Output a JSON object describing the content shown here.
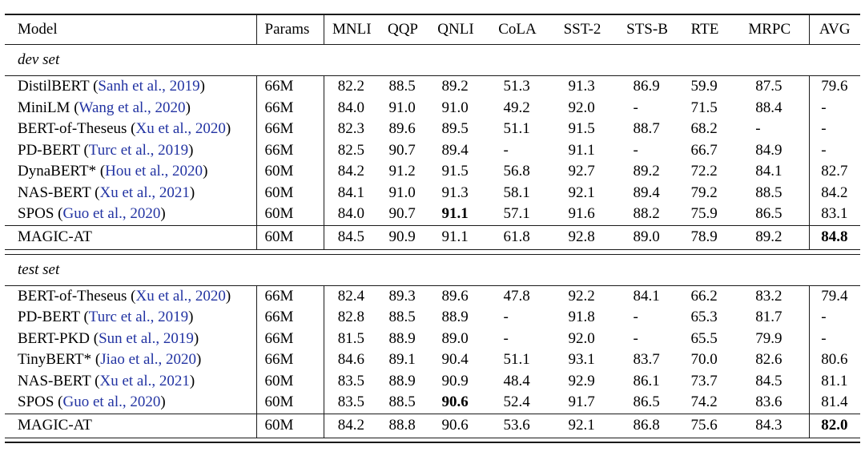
{
  "accent_colors": {
    "citation_blue": "#2233a2",
    "text": "#000000",
    "background": "#ffffff"
  },
  "table": {
    "columns": [
      "Model",
      "Params",
      "MNLI",
      "QQP",
      "QNLI",
      "CoLA",
      "SST-2",
      "STS-B",
      "RTE",
      "MRPC",
      "AVG"
    ],
    "sections": [
      {
        "label": "dev set",
        "rows": [
          {
            "model": "DistilBERT",
            "citation": "Sanh et al., 2019",
            "params": "66M",
            "values": [
              "82.2",
              "88.5",
              "89.2",
              "51.3",
              "91.3",
              "86.9",
              "59.9",
              "87.5",
              "79.6"
            ],
            "bold": []
          },
          {
            "model": "MiniLM",
            "citation": "Wang et al., 2020",
            "params": "66M",
            "values": [
              "84.0",
              "91.0",
              "91.0",
              "49.2",
              "92.0",
              "-",
              "71.5",
              "88.4",
              "-"
            ],
            "bold": []
          },
          {
            "model": "BERT-of-Theseus",
            "citation": "Xu et al., 2020",
            "params": "66M",
            "values": [
              "82.3",
              "89.6",
              "89.5",
              "51.1",
              "91.5",
              "88.7",
              "68.2",
              "-",
              "-"
            ],
            "bold": []
          },
          {
            "model": "PD-BERT",
            "citation": "Turc et al., 2019",
            "params": "66M",
            "values": [
              "82.5",
              "90.7",
              "89.4",
              "-",
              "91.1",
              "-",
              "66.7",
              "84.9",
              "-"
            ],
            "bold": []
          },
          {
            "model": "DynaBERT*",
            "citation": "Hou et al., 2020",
            "params": "60M",
            "values": [
              "84.2",
              "91.2",
              "91.5",
              "56.8",
              "92.7",
              "89.2",
              "72.2",
              "84.1",
              "82.7"
            ],
            "bold": []
          },
          {
            "model": "NAS-BERT",
            "citation": "Xu et al., 2021",
            "params": "60M",
            "values": [
              "84.1",
              "91.0",
              "91.3",
              "58.1",
              "92.1",
              "89.4",
              "79.2",
              "88.5",
              "84.2"
            ],
            "bold": []
          },
          {
            "model": "SPOS",
            "citation": "Guo et al., 2020",
            "params": "60M",
            "values": [
              "84.0",
              "90.7",
              "91.1",
              "57.1",
              "91.6",
              "88.2",
              "75.9",
              "86.5",
              "83.1"
            ],
            "bold": [
              2
            ]
          }
        ],
        "highlight_row": {
          "model": "MAGIC-AT",
          "citation": null,
          "params": "60M",
          "values": [
            "84.5",
            "90.9",
            "91.1",
            "61.8",
            "92.8",
            "89.0",
            "78.9",
            "89.2",
            "84.8"
          ],
          "bold": [
            8
          ]
        }
      },
      {
        "label": "test set",
        "rows": [
          {
            "model": "BERT-of-Theseus",
            "citation": "Xu et al., 2020",
            "params": "66M",
            "values": [
              "82.4",
              "89.3",
              "89.6",
              "47.8",
              "92.2",
              "84.1",
              "66.2",
              "83.2",
              "79.4"
            ],
            "bold": []
          },
          {
            "model": "PD-BERT",
            "citation": "Turc et al., 2019",
            "params": "66M",
            "values": [
              "82.8",
              "88.5",
              "88.9",
              "-",
              "91.8",
              "-",
              "65.3",
              "81.7",
              "-"
            ],
            "bold": []
          },
          {
            "model": "BERT-PKD",
            "citation": "Sun et al., 2019",
            "params": "66M",
            "values": [
              "81.5",
              "88.9",
              "89.0",
              "-",
              "92.0",
              "-",
              "65.5",
              "79.9",
              "-"
            ],
            "bold": []
          },
          {
            "model": "TinyBERT*",
            "citation": "Jiao et al., 2020",
            "params": "66M",
            "values": [
              "84.6",
              "89.1",
              "90.4",
              "51.1",
              "93.1",
              "83.7",
              "70.0",
              "82.6",
              "80.6"
            ],
            "bold": []
          },
          {
            "model": "NAS-BERT",
            "citation": "Xu et al., 2021",
            "params": "60M",
            "values": [
              "83.5",
              "88.9",
              "90.9",
              "48.4",
              "92.9",
              "86.1",
              "73.7",
              "84.5",
              "81.1"
            ],
            "bold": []
          },
          {
            "model": "SPOS",
            "citation": "Guo et al., 2020",
            "params": "60M",
            "values": [
              "83.5",
              "88.5",
              "90.6",
              "52.4",
              "91.7",
              "86.5",
              "74.2",
              "83.6",
              "81.4"
            ],
            "bold": [
              2
            ]
          }
        ],
        "highlight_row": {
          "model": "MAGIC-AT",
          "citation": null,
          "params": "60M",
          "values": [
            "84.2",
            "88.8",
            "90.6",
            "53.6",
            "92.1",
            "86.8",
            "75.6",
            "84.3",
            "82.0"
          ],
          "bold": [
            8
          ]
        }
      }
    ]
  }
}
